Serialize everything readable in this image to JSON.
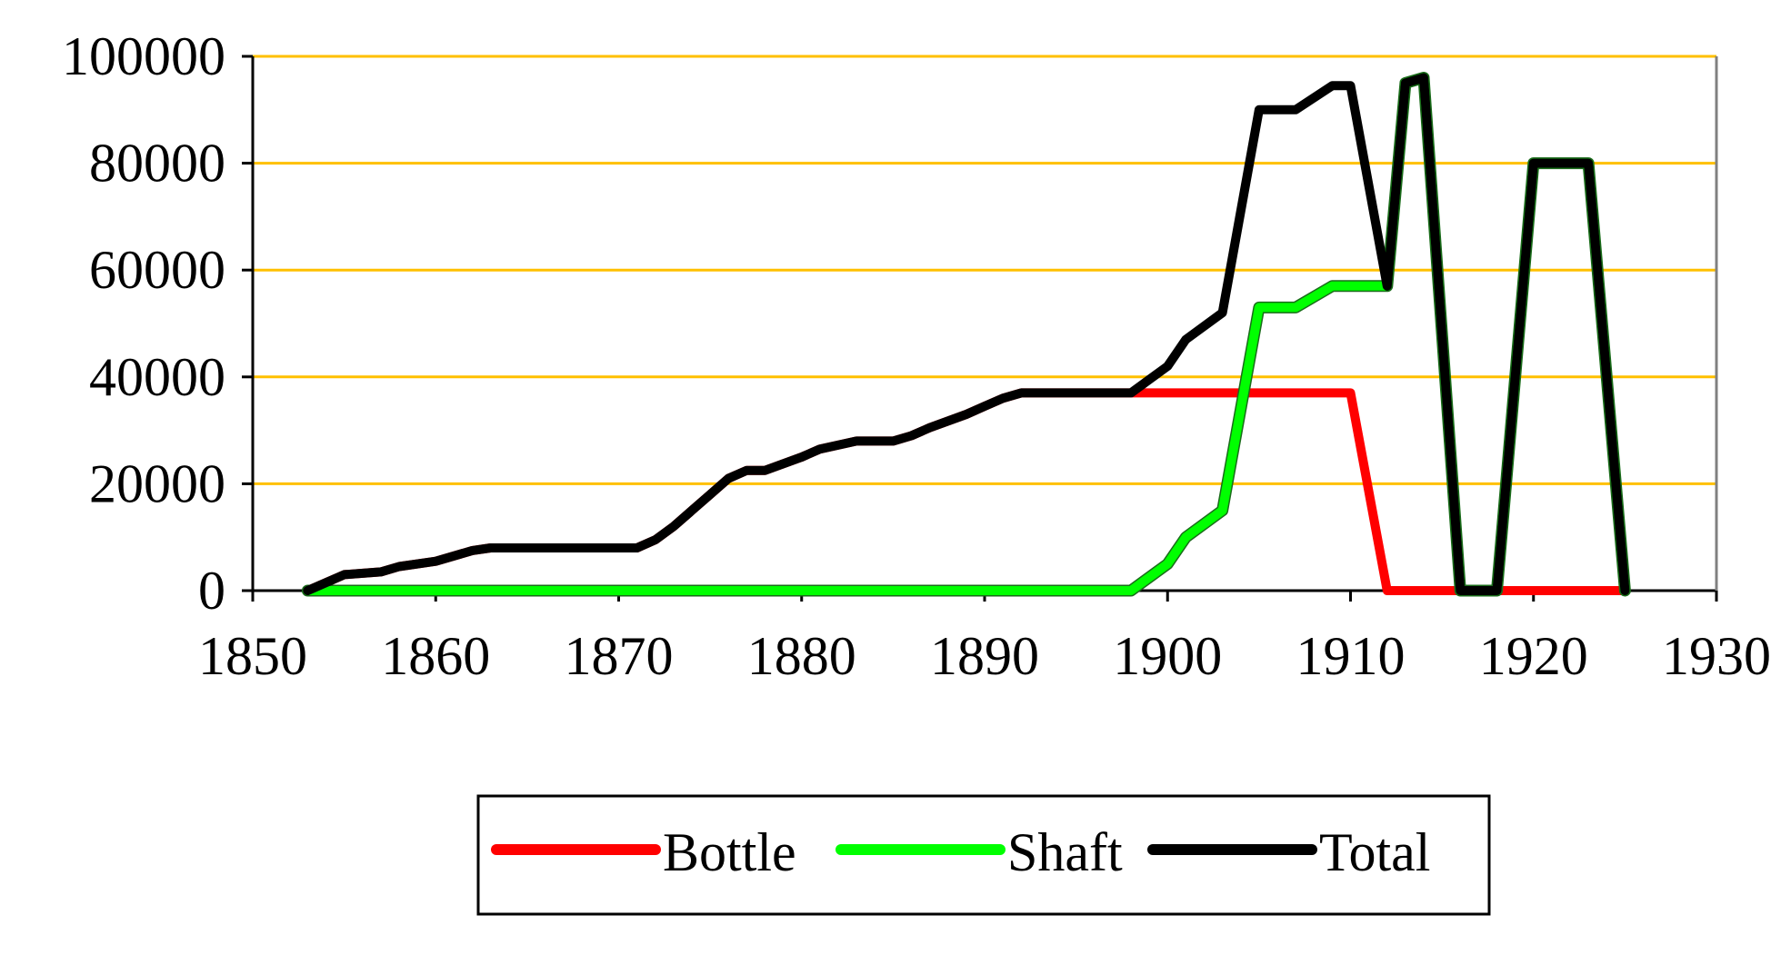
{
  "chart_data": {
    "type": "line",
    "title": "",
    "xlabel": "",
    "ylabel": "",
    "xlim": [
      1850,
      1930
    ],
    "ylim": [
      0,
      100000
    ],
    "x_ticks": [
      1850,
      1860,
      1870,
      1880,
      1890,
      1900,
      1910,
      1920,
      1930
    ],
    "y_ticks": [
      0,
      20000,
      40000,
      60000,
      80000,
      100000
    ],
    "x_tick_labels": [
      "1850",
      "1860",
      "1870",
      "1880",
      "1890",
      "1900",
      "1910",
      "1920",
      "1930"
    ],
    "y_tick_labels": [
      "0",
      "20000",
      "40000",
      "60000",
      "80000",
      "100000"
    ],
    "grid": "horizontal",
    "grid_color": "#FFC000",
    "plot_background": "#FFFFFF",
    "legend_position": "bottom",
    "series": [
      {
        "name": "Bottle",
        "color": "#FF0000",
        "points": [
          [
            1853,
            0
          ],
          [
            1855,
            3000
          ],
          [
            1857,
            3500
          ],
          [
            1858,
            4500
          ],
          [
            1860,
            5500
          ],
          [
            1862,
            7500
          ],
          [
            1863,
            8000
          ],
          [
            1871,
            8000
          ],
          [
            1872,
            9500
          ],
          [
            1873,
            12000
          ],
          [
            1874,
            15000
          ],
          [
            1875,
            18000
          ],
          [
            1876,
            21000
          ],
          [
            1877,
            22500
          ],
          [
            1878,
            22500
          ],
          [
            1880,
            25000
          ],
          [
            1881,
            26500
          ],
          [
            1883,
            28000
          ],
          [
            1885,
            28000
          ],
          [
            1886,
            29000
          ],
          [
            1887,
            30500
          ],
          [
            1889,
            33000
          ],
          [
            1890,
            34500
          ],
          [
            1891,
            36000
          ],
          [
            1892,
            37000
          ],
          [
            1910,
            37000
          ],
          [
            1912,
            0
          ],
          [
            1925,
            0
          ]
        ]
      },
      {
        "name": "Shaft",
        "color": "#00FF00",
        "points": [
          [
            1853,
            0
          ],
          [
            1855,
            0
          ],
          [
            1898,
            0
          ],
          [
            1900,
            5000
          ],
          [
            1901,
            10000
          ],
          [
            1903,
            15000
          ],
          [
            1905,
            53000
          ],
          [
            1907,
            53000
          ],
          [
            1909,
            57000
          ],
          [
            1912,
            57000
          ],
          [
            1913,
            95000
          ],
          [
            1914,
            96000
          ],
          [
            1916,
            0
          ],
          [
            1918,
            0
          ],
          [
            1920,
            80000
          ],
          [
            1923,
            80000
          ],
          [
            1925,
            0
          ]
        ]
      },
      {
        "name": "Total",
        "color": "#000000",
        "points": [
          [
            1853,
            0
          ],
          [
            1855,
            3000
          ],
          [
            1857,
            3500
          ],
          [
            1858,
            4500
          ],
          [
            1860,
            5500
          ],
          [
            1862,
            7500
          ],
          [
            1863,
            8000
          ],
          [
            1871,
            8000
          ],
          [
            1872,
            9500
          ],
          [
            1873,
            12000
          ],
          [
            1874,
            15000
          ],
          [
            1875,
            18000
          ],
          [
            1876,
            21000
          ],
          [
            1877,
            22500
          ],
          [
            1878,
            22500
          ],
          [
            1880,
            25000
          ],
          [
            1881,
            26500
          ],
          [
            1883,
            28000
          ],
          [
            1885,
            28000
          ],
          [
            1886,
            29000
          ],
          [
            1887,
            30500
          ],
          [
            1889,
            33000
          ],
          [
            1890,
            34500
          ],
          [
            1891,
            36000
          ],
          [
            1892,
            37000
          ],
          [
            1898,
            37000
          ],
          [
            1900,
            42000
          ],
          [
            1901,
            47000
          ],
          [
            1903,
            52000
          ],
          [
            1905,
            90000
          ],
          [
            1907,
            90000
          ],
          [
            1909,
            94500
          ],
          [
            1910,
            94500
          ],
          [
            1912,
            57000
          ],
          [
            1913,
            95000
          ],
          [
            1914,
            96000
          ],
          [
            1916,
            0
          ],
          [
            1918,
            0
          ],
          [
            1920,
            80000
          ],
          [
            1923,
            80000
          ],
          [
            1925,
            0
          ]
        ]
      }
    ]
  }
}
